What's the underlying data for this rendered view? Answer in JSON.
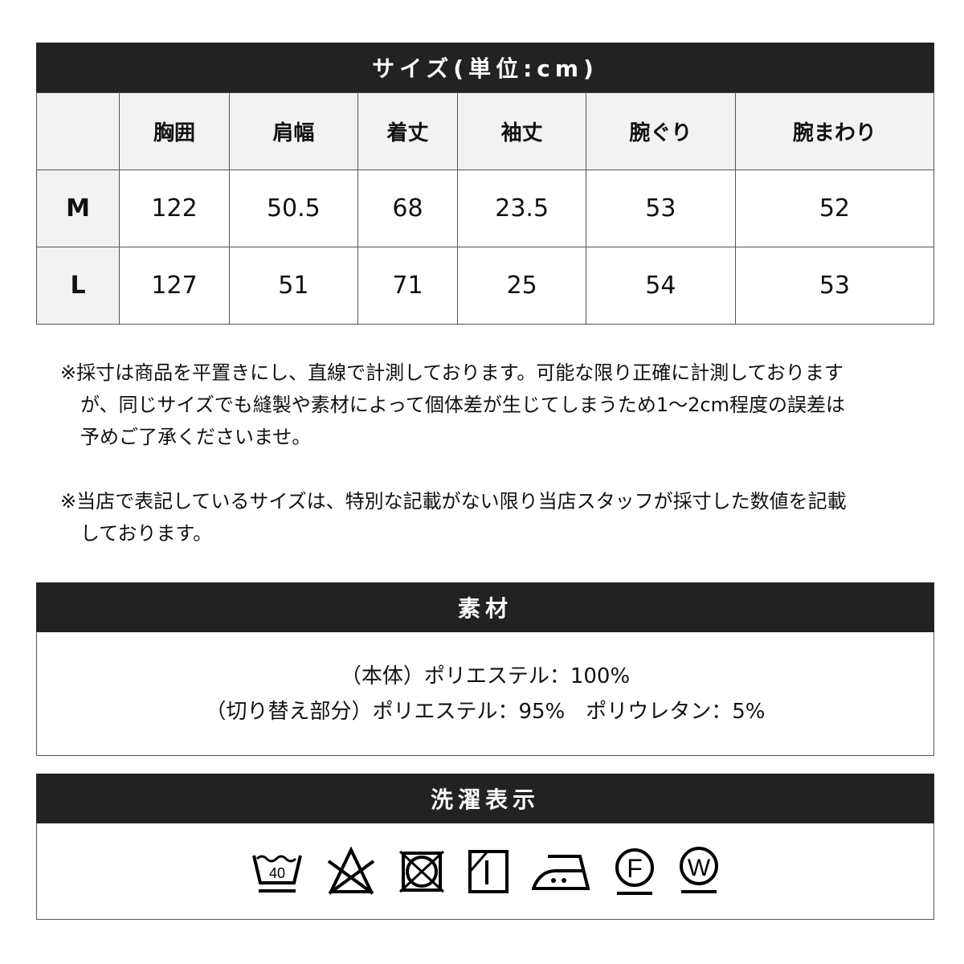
{
  "size_title": "サイズ(単位:cm)",
  "headers": [
    "",
    "胸囲",
    "肩幅",
    "着丈",
    "袖丈",
    "腕ぐり",
    "腕まわり"
  ],
  "rows": [
    {
      "size": "M",
      "values": [
        "122",
        "50.5",
        "68",
        "23.5",
        "53",
        "52"
      ]
    },
    {
      "size": "L",
      "values": [
        "127",
        "51",
        "71",
        "25",
        "54",
        "53"
      ]
    }
  ],
  "notes": [
    "※採寸は商品を平置きにし、直線で計測しております。可能な限り正確に計測しておりますが、同じサイズでも縫製や素材によって個体差が生じてしまうため1～2cm程度の誤差は予めご了承くださいませ。",
    "※当店で表記しているサイズは、特別な記載がない限り当店スタッフが採寸した数値を記載しております。"
  ],
  "material_title": "素材",
  "material_lines": [
    "（本体）ポリエステル：100%",
    "（切り替え部分）ポリエステル：95%　ポリウレタン：5%"
  ],
  "care_title": "洗濯表示",
  "care_icons": [
    "wash-40-gentle-icon",
    "no-bleach-icon",
    "no-tumble-dry-icon",
    "line-dry-shade-icon",
    "iron-medium-icon",
    "dry-clean-f-gentle-icon",
    "wet-clean-gentle-icon"
  ],
  "care_labels": {
    "wash_temp": "40",
    "dry_clean": "F",
    "wet_clean": "W"
  }
}
